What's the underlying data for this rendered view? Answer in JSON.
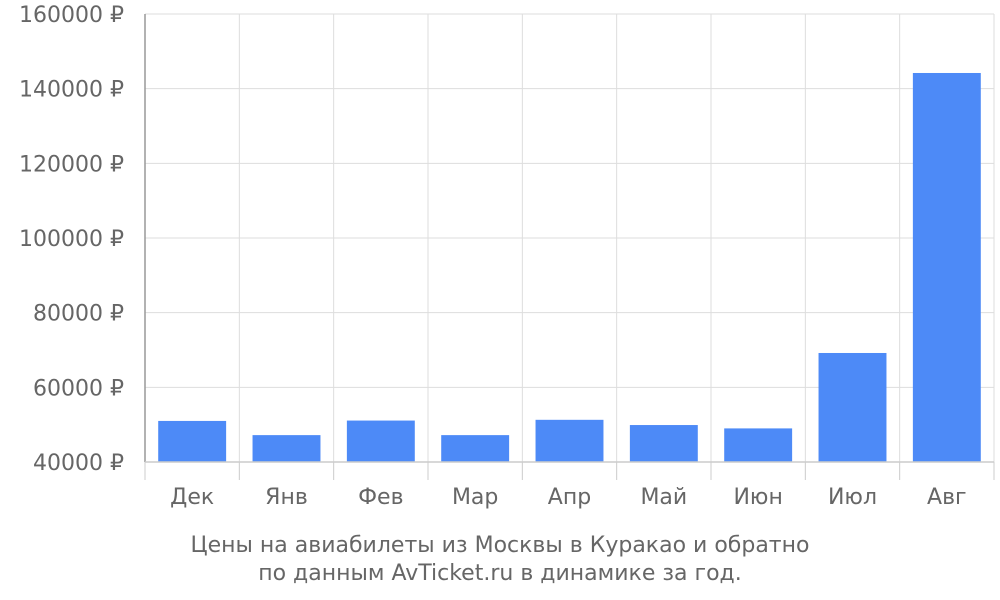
{
  "chart_data": {
    "type": "bar",
    "categories": [
      "Дек",
      "Янв",
      "Фев",
      "Мар",
      "Апр",
      "Май",
      "Июн",
      "Июл",
      "Авг"
    ],
    "values": [
      51000,
      47200,
      51100,
      47200,
      51300,
      49900,
      49000,
      69200,
      144200
    ],
    "y_ticks": [
      "40000 ₽",
      "60000 ₽",
      "80000 ₽",
      "100000 ₽",
      "120000 ₽",
      "140000 ₽",
      "160000 ₽"
    ],
    "ylim": [
      40000,
      160000
    ],
    "grid": true,
    "bar_color": "#4d8af7",
    "caption_line1": "Цены на авиабилеты из Москвы в Куракао и обратно",
    "caption_line2": "по данным AvTicket.ru в динамике за год."
  }
}
